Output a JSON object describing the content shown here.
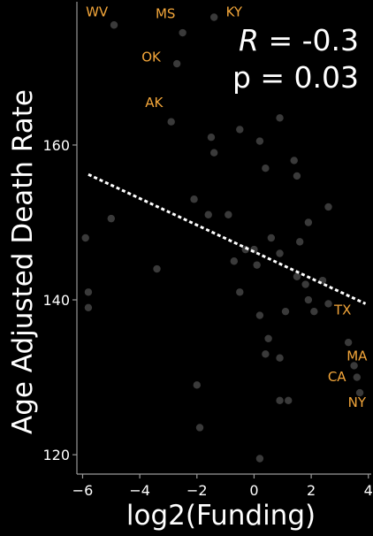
{
  "colors": {
    "background": "#000000",
    "point": "#3a3a3a",
    "label": "#f3a63a",
    "trend": "#ffffff",
    "axis": "#9a9a9a",
    "text": "#ffffff"
  },
  "stats": {
    "r_label": "R",
    "r_value": " = -0.3",
    "p_text": "p = 0.03"
  },
  "chart_data": {
    "type": "scatter",
    "xlabel": "log2(Funding)",
    "ylabel": "Age Adjusted Death Rate",
    "xlim": [
      -6.2,
      4.1
    ],
    "ylim": [
      117.5,
      178.5
    ],
    "xticks": [
      -6,
      -4,
      -2,
      0,
      2,
      4
    ],
    "xtick_labels": [
      "−6",
      "−4",
      "−2",
      "0",
      "2",
      "4"
    ],
    "yticks": [
      120,
      140,
      160
    ],
    "ytick_labels": [
      "120",
      "140",
      "160"
    ],
    "grid": false,
    "points": [
      {
        "x": -4.9,
        "y": 175.5
      },
      {
        "x": -2.5,
        "y": 174.5
      },
      {
        "x": -1.4,
        "y": 176.5
      },
      {
        "x": -2.7,
        "y": 170.5
      },
      {
        "x": -2.9,
        "y": 163.0
      },
      {
        "x": 0.9,
        "y": 163.5
      },
      {
        "x": -0.5,
        "y": 162.0
      },
      {
        "x": -1.5,
        "y": 161.0
      },
      {
        "x": 0.2,
        "y": 160.5
      },
      {
        "x": -1.4,
        "y": 159.0
      },
      {
        "x": 1.4,
        "y": 158.0
      },
      {
        "x": 0.4,
        "y": 157.0
      },
      {
        "x": 1.5,
        "y": 156.0
      },
      {
        "x": -5.0,
        "y": 150.5
      },
      {
        "x": -2.1,
        "y": 153.0
      },
      {
        "x": -1.6,
        "y": 151.0
      },
      {
        "x": -0.9,
        "y": 151.0
      },
      {
        "x": 2.6,
        "y": 152.0
      },
      {
        "x": 1.9,
        "y": 150.0
      },
      {
        "x": -5.9,
        "y": 148.0
      },
      {
        "x": 0.6,
        "y": 148.0
      },
      {
        "x": 1.6,
        "y": 147.5
      },
      {
        "x": 0.0,
        "y": 146.5
      },
      {
        "x": 0.9,
        "y": 146.0
      },
      {
        "x": -0.7,
        "y": 145.0
      },
      {
        "x": -0.3,
        "y": 146.5
      },
      {
        "x": 0.1,
        "y": 144.5
      },
      {
        "x": -3.4,
        "y": 144.0
      },
      {
        "x": 1.5,
        "y": 143.0
      },
      {
        "x": 1.8,
        "y": 142.0
      },
      {
        "x": 2.4,
        "y": 142.5
      },
      {
        "x": -5.8,
        "y": 141.0
      },
      {
        "x": -0.5,
        "y": 141.0
      },
      {
        "x": 1.9,
        "y": 140.0
      },
      {
        "x": 2.6,
        "y": 139.5
      },
      {
        "x": -5.8,
        "y": 139.0
      },
      {
        "x": 1.1,
        "y": 138.5
      },
      {
        "x": 2.1,
        "y": 138.5
      },
      {
        "x": 0.2,
        "y": 138.0
      },
      {
        "x": 0.5,
        "y": 135.0
      },
      {
        "x": 3.3,
        "y": 134.5
      },
      {
        "x": 0.4,
        "y": 133.0
      },
      {
        "x": 0.9,
        "y": 132.5
      },
      {
        "x": 3.5,
        "y": 131.5
      },
      {
        "x": 3.6,
        "y": 130.0
      },
      {
        "x": 3.7,
        "y": 128.0
      },
      {
        "x": -2.0,
        "y": 129.0
      },
      {
        "x": 0.9,
        "y": 127.0
      },
      {
        "x": 1.2,
        "y": 127.0
      },
      {
        "x": -1.9,
        "y": 123.5
      },
      {
        "x": 0.2,
        "y": 119.5
      }
    ],
    "annotations": [
      {
        "text": "WV",
        "x": -5.5,
        "y": 176.6
      },
      {
        "text": "MS",
        "x": -3.1,
        "y": 176.4
      },
      {
        "text": "KY",
        "x": -0.7,
        "y": 176.6
      },
      {
        "text": "OK",
        "x": -3.6,
        "y": 170.8
      },
      {
        "text": "AK",
        "x": -3.5,
        "y": 164.9
      },
      {
        "text": "TX",
        "x": 3.1,
        "y": 138.1
      },
      {
        "text": "MA",
        "x": 3.6,
        "y": 132.2
      },
      {
        "text": "CA",
        "x": 2.9,
        "y": 129.5
      },
      {
        "text": "NY",
        "x": 3.6,
        "y": 126.2
      }
    ],
    "trend": {
      "x": [
        -5.8,
        3.9
      ],
      "y": [
        156.2,
        139.5
      ]
    }
  }
}
